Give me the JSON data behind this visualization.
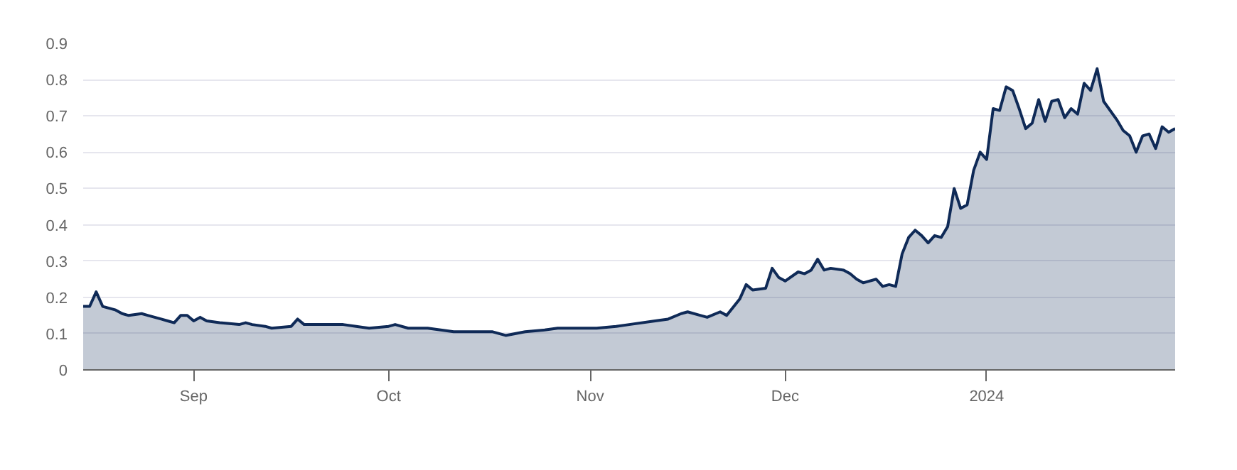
{
  "chart_data": {
    "type": "area",
    "x": [
      "2023-08-15",
      "2023-08-16",
      "2023-08-17",
      "2023-08-18",
      "2023-08-20",
      "2023-08-21",
      "2023-08-22",
      "2023-08-24",
      "2023-08-25",
      "2023-08-27",
      "2023-08-28",
      "2023-08-29",
      "2023-08-30",
      "2023-08-31",
      "2023-09-01",
      "2023-09-02",
      "2023-09-03",
      "2023-09-05",
      "2023-09-08",
      "2023-09-09",
      "2023-09-10",
      "2023-09-12",
      "2023-09-13",
      "2023-09-16",
      "2023-09-17",
      "2023-09-18",
      "2023-09-20",
      "2023-09-24",
      "2023-09-26",
      "2023-09-28",
      "2023-10-01",
      "2023-10-02",
      "2023-10-04",
      "2023-10-07",
      "2023-10-09",
      "2023-10-11",
      "2023-10-13",
      "2023-10-17",
      "2023-10-19",
      "2023-10-22",
      "2023-10-25",
      "2023-10-27",
      "2023-10-31",
      "2023-11-02",
      "2023-11-05",
      "2023-11-07",
      "2023-11-11",
      "2023-11-13",
      "2023-11-15",
      "2023-11-16",
      "2023-11-18",
      "2023-11-19",
      "2023-11-21",
      "2023-11-22",
      "2023-11-24",
      "2023-11-25",
      "2023-11-26",
      "2023-11-28",
      "2023-11-29",
      "2023-11-30",
      "2023-12-01",
      "2023-12-03",
      "2023-12-04",
      "2023-12-05",
      "2023-12-06",
      "2023-12-07",
      "2023-12-08",
      "2023-12-10",
      "2023-12-11",
      "2023-12-12",
      "2023-12-13",
      "2023-12-15",
      "2023-12-16",
      "2023-12-17",
      "2023-12-18",
      "2023-12-19",
      "2023-12-20",
      "2023-12-21",
      "2023-12-22",
      "2023-12-23",
      "2023-12-24",
      "2023-12-25",
      "2023-12-26",
      "2023-12-27",
      "2023-12-28",
      "2023-12-29",
      "2023-12-30",
      "2023-12-31",
      "2024-01-01",
      "2024-01-02",
      "2024-01-03",
      "2024-01-04",
      "2024-01-05",
      "2024-01-06",
      "2024-01-07",
      "2024-01-08",
      "2024-01-09",
      "2024-01-10",
      "2024-01-11",
      "2024-01-12",
      "2024-01-13",
      "2024-01-14",
      "2024-01-15",
      "2024-01-16",
      "2024-01-17",
      "2024-01-18",
      "2024-01-19",
      "2024-01-21",
      "2024-01-22",
      "2024-01-23",
      "2024-01-24",
      "2024-01-25",
      "2024-01-26",
      "2024-01-27",
      "2024-01-28",
      "2024-01-29",
      "2024-01-30"
    ],
    "series": [
      {
        "color": "#0f2a57",
        "values": [
          0.175,
          0.175,
          0.215,
          0.175,
          0.165,
          0.155,
          0.15,
          0.155,
          0.15,
          0.14,
          0.135,
          0.13,
          0.15,
          0.15,
          0.135,
          0.145,
          0.135,
          0.13,
          0.125,
          0.13,
          0.125,
          0.12,
          0.115,
          0.12,
          0.14,
          0.125,
          0.125,
          0.125,
          0.12,
          0.115,
          0.12,
          0.125,
          0.115,
          0.115,
          0.11,
          0.105,
          0.105,
          0.105,
          0.095,
          0.105,
          0.11,
          0.115,
          0.115,
          0.115,
          0.12,
          0.125,
          0.135,
          0.14,
          0.155,
          0.16,
          0.15,
          0.145,
          0.16,
          0.15,
          0.195,
          0.235,
          0.22,
          0.225,
          0.28,
          0.255,
          0.245,
          0.27,
          0.265,
          0.275,
          0.305,
          0.275,
          0.28,
          0.275,
          0.265,
          0.25,
          0.24,
          0.25,
          0.23,
          0.235,
          0.23,
          0.32,
          0.365,
          0.385,
          0.37,
          0.35,
          0.37,
          0.365,
          0.395,
          0.5,
          0.445,
          0.455,
          0.55,
          0.6,
          0.58,
          0.72,
          0.715,
          0.78,
          0.77,
          0.72,
          0.665,
          0.68,
          0.745,
          0.685,
          0.74,
          0.745,
          0.695,
          0.72,
          0.705,
          0.79,
          0.77,
          0.83,
          0.74,
          0.69,
          0.66,
          0.645,
          0.6,
          0.645,
          0.65,
          0.61,
          0.67,
          0.655,
          0.665
        ]
      }
    ],
    "xlim": [
      "2023-08-15",
      "2024-01-30"
    ],
    "xticks": [
      {
        "value": "2023-09-01",
        "label": "Sep"
      },
      {
        "value": "2023-10-01",
        "label": "Oct"
      },
      {
        "value": "2023-11-01",
        "label": "Nov"
      },
      {
        "value": "2023-12-01",
        "label": "Dec"
      },
      {
        "value": "2024-01-01",
        "label": "2024"
      }
    ],
    "ylim": [
      0,
      0.9
    ],
    "yticks": [
      0,
      0.1,
      0.2,
      0.3,
      0.4,
      0.5,
      0.6,
      0.7,
      0.8,
      0.9
    ],
    "grid": "y"
  }
}
